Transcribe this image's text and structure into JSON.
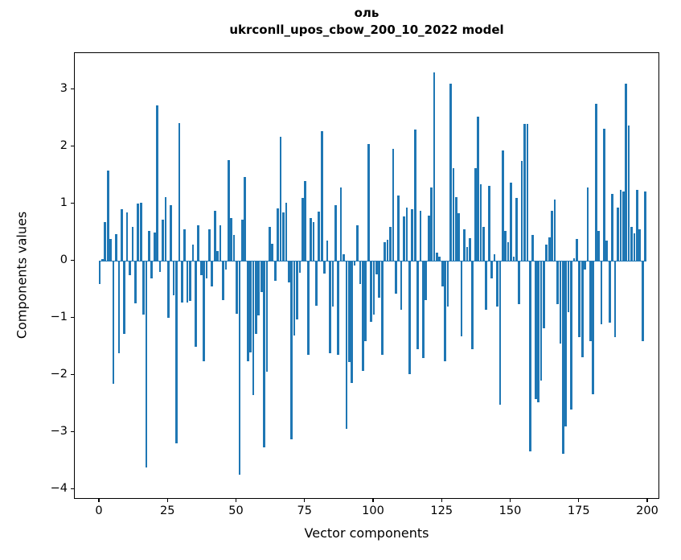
{
  "title": {
    "line1": "оль",
    "line2": "ukrconll_upos_cbow_200_10_2022 model"
  },
  "chart_data": {
    "type": "bar",
    "title": "оль / ukrconll_upos_cbow_200_10_2022 model",
    "xlabel": "Vector components",
    "ylabel": "Components values",
    "bar_color": "#1f77b4",
    "axis_color": "#000000",
    "background": "#ffffff",
    "grid": false,
    "legend": null,
    "xlim": [
      -9.1,
      204.4
    ],
    "ylim": [
      -4.18,
      3.64
    ],
    "x_ticks": [
      0,
      25,
      50,
      75,
      100,
      125,
      150,
      175,
      200
    ],
    "y_ticks": [
      3,
      2,
      1,
      0,
      -1,
      -2,
      -3,
      -4
    ],
    "y_tick_labels": [
      "3",
      "2",
      "1",
      "0",
      "−1",
      "−2",
      "−3",
      "−4"
    ],
    "bar_width": 0.8,
    "categories_note": "x = vector component index 0..199",
    "values": [
      -0.4,
      0.03,
      0.68,
      1.58,
      0.38,
      -2.15,
      0.47,
      -1.61,
      0.9,
      -1.28,
      0.85,
      -0.25,
      0.6,
      -0.74,
      1.0,
      1.02,
      -0.94,
      -3.62,
      0.52,
      -0.3,
      0.5,
      2.72,
      -0.19,
      0.73,
      1.12,
      -1.0,
      0.97,
      -0.6,
      -3.2,
      2.42,
      -0.73,
      0.55,
      -0.73,
      -0.7,
      0.28,
      -1.5,
      0.62,
      -0.25,
      -1.75,
      -0.3,
      0.55,
      -0.45,
      0.88,
      0.18,
      0.62,
      -0.69,
      -0.15,
      1.77,
      0.75,
      0.45,
      -0.93,
      -3.75,
      0.72,
      1.47,
      -1.75,
      -1.6,
      -2.35,
      -1.28,
      -0.95,
      -0.55,
      -3.27,
      -1.94,
      0.6,
      0.3,
      -0.35,
      0.92,
      2.17,
      0.85,
      1.02,
      -0.37,
      -3.12,
      -1.31,
      -1.03,
      -0.2,
      1.1,
      1.4,
      -1.65,
      0.75,
      0.68,
      -0.78,
      0.86,
      2.27,
      -0.22,
      0.35,
      -1.62,
      -0.8,
      0.97,
      -1.64,
      1.28,
      0.12,
      -2.94,
      -1.77,
      -2.14,
      -0.08,
      0.62,
      -0.4,
      -1.93,
      -1.41,
      2.05,
      -1.06,
      -0.94,
      -0.24,
      -0.65,
      -1.65,
      0.33,
      0.37,
      0.6,
      1.97,
      -0.57,
      1.15,
      -0.85,
      0.78,
      0.93,
      -1.98,
      0.9,
      2.3,
      -1.55,
      0.88,
      -1.7,
      -0.68,
      0.8,
      1.29,
      3.3,
      0.15,
      0.08,
      -0.45,
      -1.75,
      -0.8,
      3.1,
      1.62,
      1.12,
      0.83,
      -1.32,
      0.55,
      0.25,
      0.4,
      -1.55,
      1.62,
      2.53,
      1.35,
      0.6,
      -0.85,
      1.31,
      -0.31,
      0.12,
      -0.8,
      -2.52,
      1.94,
      0.52,
      0.33,
      1.37,
      0.08,
      1.1,
      -0.75,
      1.75,
      2.4,
      2.4,
      -3.34,
      0.45,
      -2.42,
      -2.47,
      -2.09,
      -1.18,
      0.28,
      0.42,
      0.88,
      1.08,
      -0.75,
      -1.44,
      -3.37,
      -2.9,
      -0.9,
      -2.6,
      0.05,
      0.38,
      -1.34,
      -1.69,
      -0.15,
      1.29,
      -1.41,
      -2.33,
      2.75,
      0.52,
      -1.11,
      2.31,
      0.35,
      -1.08,
      1.18,
      -1.34,
      0.93,
      1.25,
      1.22,
      3.1,
      2.37,
      0.6,
      0.49,
      1.24,
      0.55,
      -1.41,
      1.21
    ]
  }
}
